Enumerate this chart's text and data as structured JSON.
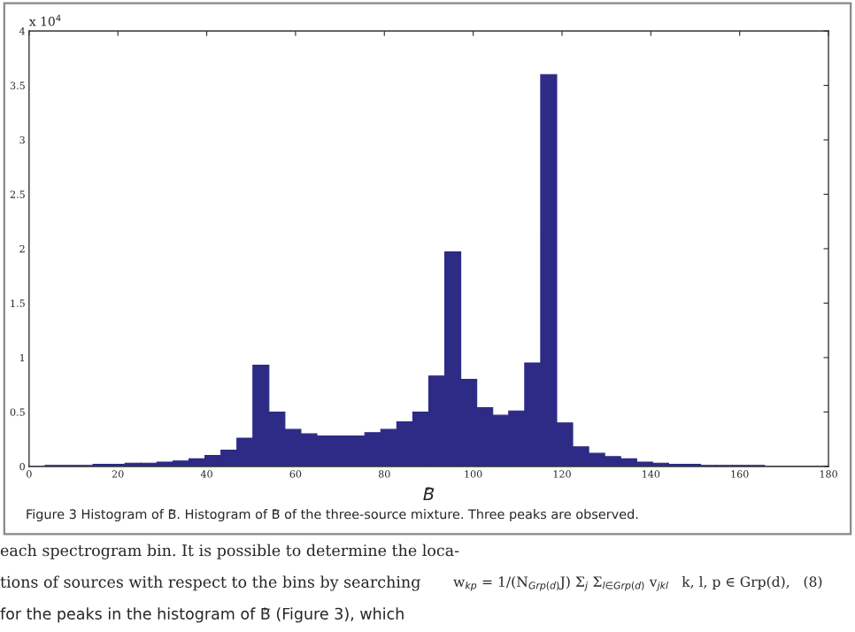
{
  "chart_data": {
    "type": "histogram",
    "xlabel": "B⃖",
    "bins": [
      0,
      3.6,
      7.2,
      10.8,
      14.4,
      18,
      21.6,
      25.2,
      28.8,
      32.4,
      36,
      39.6,
      43.2,
      46.8,
      50.4,
      54,
      57.6,
      61.2,
      64.8,
      68.4,
      72,
      75.6,
      79.2,
      82.8,
      86.4,
      90,
      93.6,
      97.2,
      100.8,
      104.4,
      108,
      111.6,
      115.2,
      118.8,
      122.4,
      126,
      129.6,
      133.2,
      136.8,
      140.4,
      144,
      147.6,
      151.2,
      154.8,
      158.4,
      162,
      165.6,
      169.2,
      172.8,
      176.4,
      180
    ],
    "values": [
      0,
      0.01,
      0.01,
      0.01,
      0.02,
      0.02,
      0.03,
      0.03,
      0.04,
      0.05,
      0.07,
      0.1,
      0.15,
      0.26,
      0.93,
      0.5,
      0.34,
      0.3,
      0.28,
      0.28,
      0.28,
      0.31,
      0.34,
      0.41,
      0.5,
      0.83,
      1.97,
      0.8,
      0.54,
      0.47,
      0.51,
      0.95,
      3.6,
      0.4,
      0.18,
      0.12,
      0.09,
      0.07,
      0.04,
      0.03,
      0.02,
      0.02,
      0.01,
      0.01,
      0.01,
      0.01,
      0,
      0,
      0,
      0
    ],
    "color": "#2e2b87",
    "xlim": [
      0,
      180
    ],
    "xticks": [
      0,
      20,
      40,
      60,
      80,
      100,
      120,
      140,
      160,
      180
    ],
    "ylim": [
      0,
      4
    ],
    "yticks": [
      0,
      0.5,
      1,
      1.5,
      2,
      2.5,
      3,
      3.5,
      4
    ],
    "annotations": [
      "x 10$^{4}$",
      "Figure 3 Histogram of B⃖. Histogram of B⃖ of the three-source mixture. Three peaks are observed.",
      "each spectrogram bin. It is possible to determine the loca-",
      "tions of sources with respect to the bins by searching",
      "for the peaks in the histogram of B⃖ (Figure 3), which",
      "w$_{kp}$ = 1/(N$_{Grp(d)}$J) Σ$_{j}$ Σ$_{l∈Grp(d)}$ v$_{jkl}$   k, l, p ∈ Grp(d),   (8)"
    ]
  }
}
